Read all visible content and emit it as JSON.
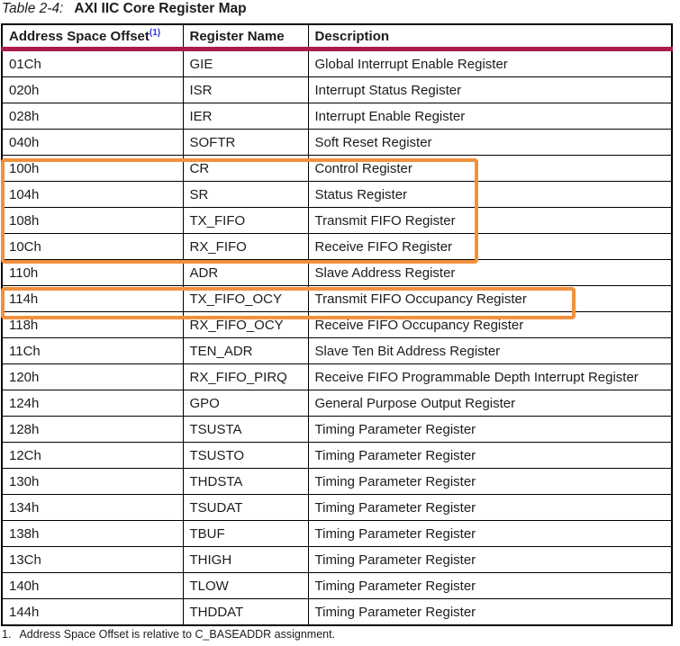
{
  "title": {
    "label": "Table 2-4:",
    "text": "AXI IIC Core Register Map"
  },
  "table": {
    "columns": [
      "Address Space Offset",
      "Register Name",
      "Description"
    ],
    "offset_footnote_ref": "(1)",
    "rows": [
      {
        "offset": "01Ch",
        "name": "GIE",
        "desc": "Global Interrupt Enable Register"
      },
      {
        "offset": "020h",
        "name": "ISR",
        "desc": "Interrupt Status Register"
      },
      {
        "offset": "028h",
        "name": "IER",
        "desc": "Interrupt Enable Register"
      },
      {
        "offset": "040h",
        "name": "SOFTR",
        "desc": "Soft Reset Register"
      },
      {
        "offset": "100h",
        "name": "CR",
        "desc": "Control Register"
      },
      {
        "offset": "104h",
        "name": "SR",
        "desc": "Status Register"
      },
      {
        "offset": "108h",
        "name": "TX_FIFO",
        "desc": "Transmit FIFO Register"
      },
      {
        "offset": "10Ch",
        "name": "RX_FIFO",
        "desc": "Receive FIFO Register"
      },
      {
        "offset": "110h",
        "name": "ADR",
        "desc": "Slave Address Register"
      },
      {
        "offset": "114h",
        "name": "TX_FIFO_OCY",
        "desc": "Transmit FIFO Occupancy Register"
      },
      {
        "offset": "118h",
        "name": "RX_FIFO_OCY",
        "desc": "Receive FIFO Occupancy Register"
      },
      {
        "offset": "11Ch",
        "name": "TEN_ADR",
        "desc": "Slave Ten Bit Address Register"
      },
      {
        "offset": "120h",
        "name": "RX_FIFO_PIRQ",
        "desc": "Receive FIFO Programmable Depth Interrupt Register"
      },
      {
        "offset": "124h",
        "name": "GPO",
        "desc": "General Purpose Output Register"
      },
      {
        "offset": "128h",
        "name": "TSUSTA",
        "desc": "Timing Parameter Register"
      },
      {
        "offset": "12Ch",
        "name": "TSUSTO",
        "desc": "Timing Parameter Register"
      },
      {
        "offset": "130h",
        "name": "THDSTA",
        "desc": "Timing Parameter Register"
      },
      {
        "offset": "134h",
        "name": "TSUDAT",
        "desc": "Timing Parameter Register"
      },
      {
        "offset": "138h",
        "name": "TBUF",
        "desc": "Timing Parameter Register"
      },
      {
        "offset": "13Ch",
        "name": "THIGH",
        "desc": "Timing Parameter Register"
      },
      {
        "offset": "140h",
        "name": "TLOW",
        "desc": "Timing Parameter Register"
      },
      {
        "offset": "144h",
        "name": "THDDAT",
        "desc": "Timing Parameter Register"
      }
    ]
  },
  "footnote": {
    "marker": "1.",
    "text": "Address Space Offset is relative to C_BASEADDR assignment."
  },
  "annotations": {
    "highlight_color": "#F2913D",
    "boxes": [
      {
        "rows": "100h-10Ch",
        "registers": "CR, SR, TX_FIFO, RX_FIFO"
      },
      {
        "rows": "114h",
        "registers": "TX_FIFO_OCY"
      }
    ]
  },
  "colors": {
    "header_rule": "#AC1A4E",
    "link_blue": "#3333DD",
    "table_border": "#000000",
    "text": "#1C1C1C"
  }
}
